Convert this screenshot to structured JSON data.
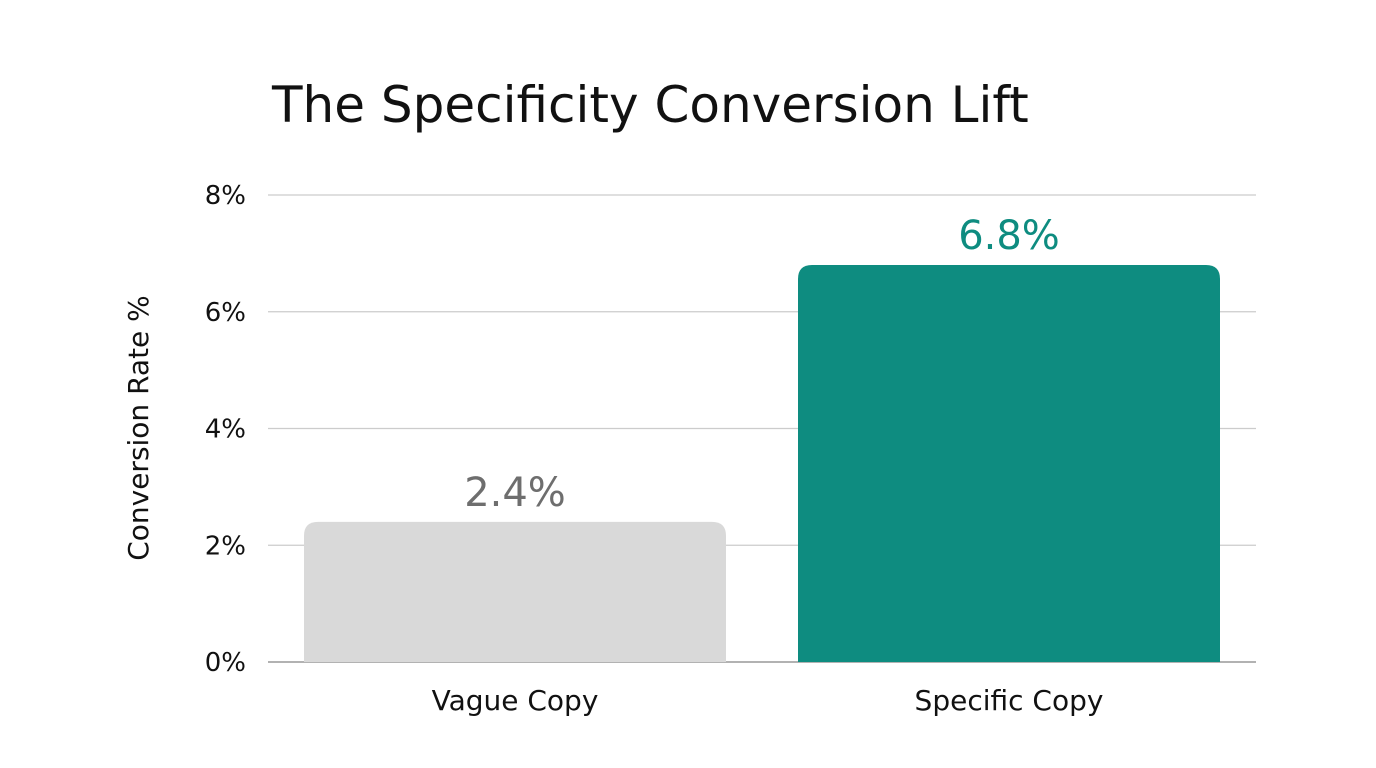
{
  "chart_data": {
    "type": "bar",
    "title": "The Specificity Conversion Lift",
    "xlabel": "",
    "ylabel": "Conversion Rate %",
    "categories": [
      "Vague Copy",
      "Specific Copy"
    ],
    "values": [
      2.4,
      6.8
    ],
    "data_labels": [
      "2.4%",
      "6.8%"
    ],
    "bar_colors": [
      "#d9d9d9",
      "#0e8c80"
    ],
    "data_label_colors": [
      "#6e6e6e",
      "#0e8c80"
    ],
    "ylim": [
      0,
      8
    ],
    "yticks": [
      0,
      2,
      4,
      6,
      8
    ],
    "ytick_labels": [
      "0%",
      "2%",
      "4%",
      "6%",
      "8%"
    ],
    "grid": true,
    "gridline_color": "#cccccc",
    "baseline_color": "#999999"
  }
}
